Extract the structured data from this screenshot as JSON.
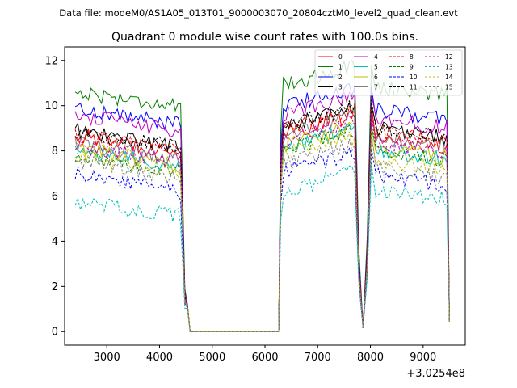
{
  "figure": {
    "suptitle": "Data file: modeM0/AS1A05_013T01_9000003070_20804cztM0_level2_quad_clean.evt"
  },
  "chart_data": {
    "type": "line",
    "title": "Quadrant 0 module wise count rates with 100.0s bins.",
    "xlabel": "",
    "ylabel": "",
    "x_offset_label": "+3.0254e8",
    "xlim": [
      2200,
      9800
    ],
    "ylim": [
      -0.6,
      12.6
    ],
    "x_ticks": [
      3000,
      4000,
      5000,
      6000,
      7000,
      8000,
      9000
    ],
    "x_tick_labels": [
      "3000",
      "4000",
      "5000",
      "6000",
      "7000",
      "8000",
      "9000"
    ],
    "y_ticks": [
      0,
      2,
      4,
      6,
      8,
      10,
      12
    ],
    "y_tick_labels": [
      "0",
      "2",
      "4",
      "6",
      "8",
      "10",
      "12"
    ],
    "grid": false,
    "legend_position": "upper-right",
    "legend_columns": 4,
    "time_bins": [
      2400,
      2500,
      2600,
      2700,
      2800,
      2900,
      3000,
      3100,
      3200,
      3300,
      3400,
      3500,
      3600,
      3700,
      3800,
      3900,
      4000,
      4100,
      4200,
      4300,
      4400,
      4500,
      4600,
      4700,
      6200,
      6300,
      6400,
      6500,
      6600,
      6700,
      6800,
      6900,
      7000,
      7100,
      7200,
      7300,
      7400,
      7500,
      7600,
      7700,
      7800,
      7900,
      8000,
      8100,
      8200,
      8300,
      8400,
      8500,
      8600,
      8700,
      8800,
      8900,
      9000,
      9100,
      9200,
      9300,
      9400,
      9500
    ],
    "series": [
      {
        "name": "0",
        "color": "#ff0000",
        "dash": "solid",
        "start_level": 8.7,
        "end_level": 8.2
      },
      {
        "name": "1",
        "color": "#008000",
        "dash": "solid",
        "start_level": 10.6,
        "end_level": 10.5
      },
      {
        "name": "2",
        "color": "#0000ff",
        "dash": "solid",
        "start_level": 9.9,
        "end_level": 9.4
      },
      {
        "name": "3",
        "color": "#000000",
        "dash": "solid",
        "start_level": 8.9,
        "end_level": 8.6
      },
      {
        "name": "4",
        "color": "#c000c0",
        "dash": "solid",
        "start_level": 9.6,
        "end_level": 9.0
      },
      {
        "name": "5",
        "color": "#00bfbf",
        "dash": "solid",
        "start_level": 8.0,
        "end_level": 7.6
      },
      {
        "name": "6",
        "color": "#bfbf00",
        "dash": "solid",
        "start_level": 8.1,
        "end_level": 7.7
      },
      {
        "name": "7",
        "color": "#808080",
        "dash": "solid",
        "start_level": 8.3,
        "end_level": 8.3
      },
      {
        "name": "8",
        "color": "#ff0000",
        "dash": "dashed",
        "start_level": 8.6,
        "end_level": 8.5
      },
      {
        "name": "9",
        "color": "#008000",
        "dash": "dashed",
        "start_level": 7.8,
        "end_level": 7.6
      },
      {
        "name": "10",
        "color": "#0000ff",
        "dash": "dashed",
        "start_level": 7.0,
        "end_level": 6.5
      },
      {
        "name": "11",
        "color": "#000000",
        "dash": "dashed",
        "start_level": 8.8,
        "end_level": 8.7
      },
      {
        "name": "12",
        "color": "#c000c0",
        "dash": "dashed",
        "start_level": 8.2,
        "end_level": 8.0
      },
      {
        "name": "13",
        "color": "#00bfbf",
        "dash": "dashed",
        "start_level": 5.7,
        "end_level": 5.9
      },
      {
        "name": "14",
        "color": "#bfbf00",
        "dash": "dashed",
        "start_level": 7.8,
        "end_level": 7.2
      },
      {
        "name": "15",
        "color": "#808080",
        "dash": "dashed",
        "start_level": 7.6,
        "end_level": 6.8
      }
    ]
  }
}
